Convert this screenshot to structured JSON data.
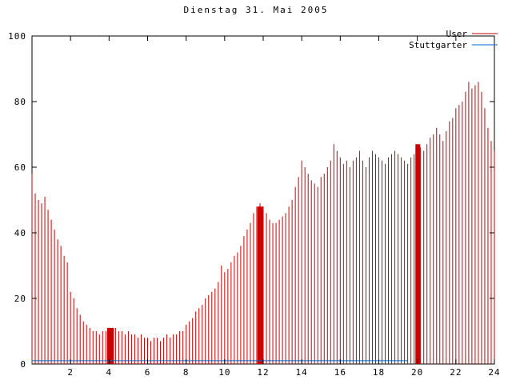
{
  "window": {
    "title": "Dienstag 31. Mai 2005"
  },
  "colors": {
    "background": "#ffffff",
    "axis": "#000000",
    "user_series": "#cc0000",
    "stuttgarter_series": "#0066cc"
  },
  "chart_data": {
    "type": "bar",
    "title": "Dienstag 31. Mai 2005",
    "xlabel": "",
    "ylabel": "",
    "x_range": [
      0,
      24
    ],
    "y_range": [
      0,
      100
    ],
    "x_ticks": [
      2,
      4,
      6,
      8,
      10,
      12,
      14,
      16,
      18,
      20,
      22,
      24
    ],
    "y_ticks": [
      0,
      20,
      40,
      60,
      80,
      100
    ],
    "grid": false,
    "legend_position": "top-right",
    "interval_minutes": 10,
    "series": [
      {
        "name": "User",
        "type": "impulses",
        "color": "#cc0000",
        "values": [
          58,
          52,
          50,
          49,
          51,
          47,
          44,
          41,
          38,
          36,
          33,
          31,
          22,
          20,
          17,
          15,
          13,
          12,
          11,
          10,
          10,
          9,
          10,
          10,
          11,
          11,
          11,
          10,
          10,
          9,
          10,
          9,
          9,
          8,
          9,
          8,
          8,
          7,
          8,
          8,
          7,
          8,
          9,
          8,
          9,
          9,
          10,
          10,
          12,
          13,
          14,
          16,
          17,
          18,
          20,
          21,
          22,
          23,
          25,
          30,
          28,
          29,
          31,
          33,
          34,
          36,
          39,
          41,
          43,
          46,
          48,
          49,
          48,
          46,
          44,
          43,
          43,
          44,
          45,
          46,
          48,
          50,
          54,
          57,
          62,
          60,
          58,
          56,
          55,
          54,
          57,
          58,
          60,
          62,
          67,
          65,
          63,
          61,
          62,
          60,
          62,
          63,
          65,
          62,
          60,
          63,
          65,
          64,
          63,
          62,
          61,
          63,
          64,
          65,
          64,
          63,
          62,
          61,
          63,
          64,
          67,
          66,
          65,
          67,
          69,
          70,
          72,
          70,
          68,
          71,
          74,
          75,
          78,
          79,
          80,
          83,
          86,
          84,
          85,
          86,
          83,
          78,
          72,
          68,
          65
        ]
      },
      {
        "name": "Stuttgarter",
        "type": "line",
        "color": "#0066cc",
        "y": 1,
        "x_start": 0,
        "x_end": 19.5
      }
    ],
    "dense_blocks": [
      {
        "x1": 3.9,
        "x2": 4.25,
        "h": 11
      },
      {
        "x1": 11.7,
        "x2": 12.0,
        "h": 48
      },
      {
        "x1": 19.9,
        "x2": 20.15,
        "h": 67
      }
    ]
  }
}
